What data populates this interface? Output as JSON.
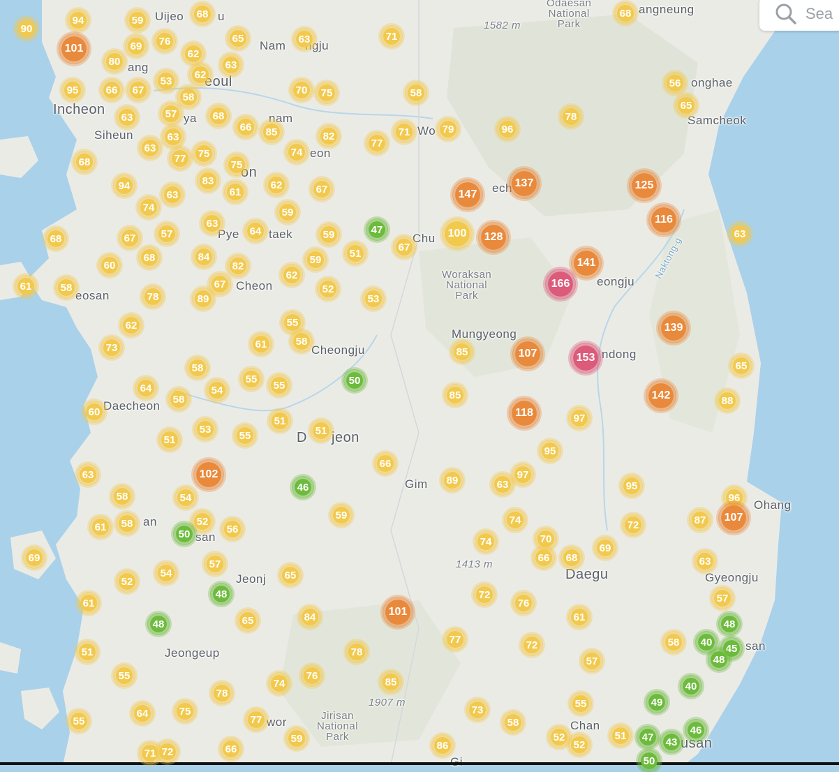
{
  "search": {
    "placeholder": "Sea"
  },
  "colors": {
    "sea": "#a9d1ea",
    "land": "#ebebe6",
    "good": "#6cbb3c",
    "moderate": "#f2c94c",
    "usg": "#e9893b",
    "unhealthy": "#dc5a7a"
  },
  "places": [
    {
      "text": "Uijeo",
      "kind": "town"
    },
    {
      "text": "u",
      "kind": "town"
    },
    {
      "text": "Nam",
      "kind": "town"
    },
    {
      "text": "ngju",
      "kind": "town"
    },
    {
      "text": "ang",
      "kind": "town"
    },
    {
      "text": "eoul",
      "kind": "city"
    },
    {
      "text": "Incheon",
      "kind": "city"
    },
    {
      "text": "Siheun",
      "kind": "town"
    },
    {
      "text": "ya",
      "kind": "town"
    },
    {
      "text": "nam",
      "kind": "town"
    },
    {
      "text": "eon",
      "kind": "town"
    },
    {
      "text": "Wo",
      "kind": "town"
    },
    {
      "text": "on",
      "kind": "city"
    },
    {
      "text": "Pye",
      "kind": "town"
    },
    {
      "text": "taek",
      "kind": "town"
    },
    {
      "text": "Chu",
      "kind": "town"
    },
    {
      "text": "Cheon",
      "kind": "town"
    },
    {
      "text": "eosan",
      "kind": "town"
    },
    {
      "text": "Cheongju",
      "kind": "town"
    },
    {
      "text": "Daecheon",
      "kind": "town"
    },
    {
      "text": "D",
      "kind": "city"
    },
    {
      "text": "jeon",
      "kind": "city"
    },
    {
      "text": "Gim",
      "kind": "town"
    },
    {
      "text": "an",
      "kind": "town"
    },
    {
      "text": "san",
      "kind": "town"
    },
    {
      "text": "Jeonj",
      "kind": "town"
    },
    {
      "text": "Jeongeup",
      "kind": "town"
    },
    {
      "text": "wor",
      "kind": "town"
    },
    {
      "text": "angneung",
      "kind": "town"
    },
    {
      "text": "onghae",
      "kind": "town"
    },
    {
      "text": "Samcheok",
      "kind": "town"
    },
    {
      "text": "ech",
      "kind": "town"
    },
    {
      "text": "eongju",
      "kind": "town"
    },
    {
      "text": "Mungyeong",
      "kind": "town"
    },
    {
      "text": "ndong",
      "kind": "town"
    },
    {
      "text": "Ohang",
      "kind": "town"
    },
    {
      "text": "Daegu",
      "kind": "city"
    },
    {
      "text": "Gyeongju",
      "kind": "town"
    },
    {
      "text": "san",
      "kind": "town"
    },
    {
      "text": "Chan",
      "kind": "town"
    },
    {
      "text": "usan",
      "kind": "city"
    },
    {
      "text": "Gi",
      "kind": "town"
    }
  ],
  "parks": [
    {
      "text": "Odaesan\nNational\nPark"
    },
    {
      "text": "Woraksan\nNational\nPark"
    },
    {
      "text": "Jirisan\nNational\nPark"
    }
  ],
  "elevations": [
    "1582 m",
    "1413 m",
    "1907 m"
  ],
  "rivers": [
    "Naktong-g"
  ],
  "markers": [
    {
      "v": "90",
      "c": "moderate"
    },
    {
      "v": "94",
      "c": "moderate"
    },
    {
      "v": "59",
      "c": "moderate"
    },
    {
      "v": "68",
      "c": "moderate"
    },
    {
      "v": "101",
      "c": "usg"
    },
    {
      "v": "69",
      "c": "moderate"
    },
    {
      "v": "76",
      "c": "moderate"
    },
    {
      "v": "65",
      "c": "moderate"
    },
    {
      "v": "63",
      "c": "moderate"
    },
    {
      "v": "71",
      "c": "moderate"
    },
    {
      "v": "68",
      "c": "moderate"
    },
    {
      "v": "80",
      "c": "moderate"
    },
    {
      "v": "62",
      "c": "moderate"
    },
    {
      "v": "63",
      "c": "moderate"
    },
    {
      "v": "95",
      "c": "moderate"
    },
    {
      "v": "66",
      "c": "moderate"
    },
    {
      "v": "67",
      "c": "moderate"
    },
    {
      "v": "53",
      "c": "moderate"
    },
    {
      "v": "62",
      "c": "moderate"
    },
    {
      "v": "58",
      "c": "moderate"
    },
    {
      "v": "70",
      "c": "moderate"
    },
    {
      "v": "75",
      "c": "moderate"
    },
    {
      "v": "58",
      "c": "moderate"
    },
    {
      "v": "56",
      "c": "moderate"
    },
    {
      "v": "65",
      "c": "moderate"
    },
    {
      "v": "63",
      "c": "moderate"
    },
    {
      "v": "57",
      "c": "moderate"
    },
    {
      "v": "68",
      "c": "moderate"
    },
    {
      "v": "66",
      "c": "moderate"
    },
    {
      "v": "85",
      "c": "moderate"
    },
    {
      "v": "82",
      "c": "moderate"
    },
    {
      "v": "71",
      "c": "moderate"
    },
    {
      "v": "79",
      "c": "moderate"
    },
    {
      "v": "96",
      "c": "moderate"
    },
    {
      "v": "78",
      "c": "moderate"
    },
    {
      "v": "77",
      "c": "moderate"
    },
    {
      "v": "63",
      "c": "moderate"
    },
    {
      "v": "63",
      "c": "moderate"
    },
    {
      "v": "77",
      "c": "moderate"
    },
    {
      "v": "75",
      "c": "moderate"
    },
    {
      "v": "74",
      "c": "moderate"
    },
    {
      "v": "68",
      "c": "moderate"
    },
    {
      "v": "75",
      "c": "moderate"
    },
    {
      "v": "83",
      "c": "moderate"
    },
    {
      "v": "61",
      "c": "moderate"
    },
    {
      "v": "62",
      "c": "moderate"
    },
    {
      "v": "67",
      "c": "moderate"
    },
    {
      "v": "94",
      "c": "moderate"
    },
    {
      "v": "63",
      "c": "moderate"
    },
    {
      "v": "74",
      "c": "moderate"
    },
    {
      "v": "59",
      "c": "moderate"
    },
    {
      "v": "147",
      "c": "usg"
    },
    {
      "v": "137",
      "c": "usg"
    },
    {
      "v": "125",
      "c": "usg"
    },
    {
      "v": "116",
      "c": "usg"
    },
    {
      "v": "63",
      "c": "moderate"
    },
    {
      "v": "63",
      "c": "moderate"
    },
    {
      "v": "64",
      "c": "moderate"
    },
    {
      "v": "59",
      "c": "moderate"
    },
    {
      "v": "47",
      "c": "good"
    },
    {
      "v": "100",
      "c": "moderate"
    },
    {
      "v": "128",
      "c": "usg"
    },
    {
      "v": "67",
      "c": "moderate"
    },
    {
      "v": "68",
      "c": "moderate"
    },
    {
      "v": "57",
      "c": "moderate"
    },
    {
      "v": "51",
      "c": "moderate"
    },
    {
      "v": "67",
      "c": "moderate"
    },
    {
      "v": "60",
      "c": "moderate"
    },
    {
      "v": "68",
      "c": "moderate"
    },
    {
      "v": "84",
      "c": "moderate"
    },
    {
      "v": "82",
      "c": "moderate"
    },
    {
      "v": "59",
      "c": "moderate"
    },
    {
      "v": "62",
      "c": "moderate"
    },
    {
      "v": "141",
      "c": "usg"
    },
    {
      "v": "166",
      "c": "unhealthy"
    },
    {
      "v": "61",
      "c": "moderate"
    },
    {
      "v": "58",
      "c": "moderate"
    },
    {
      "v": "78",
      "c": "moderate"
    },
    {
      "v": "67",
      "c": "moderate"
    },
    {
      "v": "89",
      "c": "moderate"
    },
    {
      "v": "52",
      "c": "moderate"
    },
    {
      "v": "53",
      "c": "moderate"
    },
    {
      "v": "62",
      "c": "moderate"
    },
    {
      "v": "55",
      "c": "moderate"
    },
    {
      "v": "139",
      "c": "usg"
    },
    {
      "v": "73",
      "c": "moderate"
    },
    {
      "v": "61",
      "c": "moderate"
    },
    {
      "v": "58",
      "c": "moderate"
    },
    {
      "v": "85",
      "c": "moderate"
    },
    {
      "v": "107",
      "c": "usg"
    },
    {
      "v": "153",
      "c": "unhealthy"
    },
    {
      "v": "65",
      "c": "moderate"
    },
    {
      "v": "58",
      "c": "moderate"
    },
    {
      "v": "50",
      "c": "good"
    },
    {
      "v": "64",
      "c": "moderate"
    },
    {
      "v": "55",
      "c": "moderate"
    },
    {
      "v": "55",
      "c": "moderate"
    },
    {
      "v": "54",
      "c": "moderate"
    },
    {
      "v": "58",
      "c": "moderate"
    },
    {
      "v": "60",
      "c": "moderate"
    },
    {
      "v": "85",
      "c": "moderate"
    },
    {
      "v": "142",
      "c": "usg"
    },
    {
      "v": "88",
      "c": "moderate"
    },
    {
      "v": "118",
      "c": "usg"
    },
    {
      "v": "97",
      "c": "moderate"
    },
    {
      "v": "51",
      "c": "moderate"
    },
    {
      "v": "53",
      "c": "moderate"
    },
    {
      "v": "55",
      "c": "moderate"
    },
    {
      "v": "51",
      "c": "moderate"
    },
    {
      "v": "51",
      "c": "moderate"
    },
    {
      "v": "95",
      "c": "moderate"
    },
    {
      "v": "66",
      "c": "moderate"
    },
    {
      "v": "63",
      "c": "moderate"
    },
    {
      "v": "46",
      "c": "good"
    },
    {
      "v": "102",
      "c": "usg"
    },
    {
      "v": "89",
      "c": "moderate"
    },
    {
      "v": "97",
      "c": "moderate"
    },
    {
      "v": "63",
      "c": "moderate"
    },
    {
      "v": "95",
      "c": "moderate"
    },
    {
      "v": "58",
      "c": "moderate"
    },
    {
      "v": "54",
      "c": "moderate"
    },
    {
      "v": "96",
      "c": "moderate"
    },
    {
      "v": "107",
      "c": "usg"
    },
    {
      "v": "59",
      "c": "moderate"
    },
    {
      "v": "74",
      "c": "moderate"
    },
    {
      "v": "52",
      "c": "moderate"
    },
    {
      "v": "72",
      "c": "moderate"
    },
    {
      "v": "87",
      "c": "moderate"
    },
    {
      "v": "61",
      "c": "moderate"
    },
    {
      "v": "58",
      "c": "moderate"
    },
    {
      "v": "50",
      "c": "good"
    },
    {
      "v": "56",
      "c": "moderate"
    },
    {
      "v": "74",
      "c": "moderate"
    },
    {
      "v": "70",
      "c": "moderate"
    },
    {
      "v": "69",
      "c": "moderate"
    },
    {
      "v": "66",
      "c": "moderate"
    },
    {
      "v": "68",
      "c": "moderate"
    },
    {
      "v": "69",
      "c": "moderate"
    },
    {
      "v": "57",
      "c": "moderate"
    },
    {
      "v": "63",
      "c": "moderate"
    },
    {
      "v": "52",
      "c": "moderate"
    },
    {
      "v": "54",
      "c": "moderate"
    },
    {
      "v": "65",
      "c": "moderate"
    },
    {
      "v": "48",
      "c": "good"
    },
    {
      "v": "72",
      "c": "moderate"
    },
    {
      "v": "76",
      "c": "moderate"
    },
    {
      "v": "57",
      "c": "moderate"
    },
    {
      "v": "61",
      "c": "moderate"
    },
    {
      "v": "101",
      "c": "usg"
    },
    {
      "v": "61",
      "c": "moderate"
    },
    {
      "v": "48",
      "c": "good"
    },
    {
      "v": "65",
      "c": "moderate"
    },
    {
      "v": "84",
      "c": "moderate"
    },
    {
      "v": "48",
      "c": "good"
    },
    {
      "v": "77",
      "c": "moderate"
    },
    {
      "v": "72",
      "c": "moderate"
    },
    {
      "v": "58",
      "c": "moderate"
    },
    {
      "v": "40",
      "c": "good"
    },
    {
      "v": "45",
      "c": "good"
    },
    {
      "v": "48",
      "c": "good"
    },
    {
      "v": "51",
      "c": "moderate"
    },
    {
      "v": "78",
      "c": "moderate"
    },
    {
      "v": "57",
      "c": "moderate"
    },
    {
      "v": "55",
      "c": "moderate"
    },
    {
      "v": "76",
      "c": "moderate"
    },
    {
      "v": "74",
      "c": "moderate"
    },
    {
      "v": "85",
      "c": "moderate"
    },
    {
      "v": "40",
      "c": "good"
    },
    {
      "v": "78",
      "c": "moderate"
    },
    {
      "v": "64",
      "c": "moderate"
    },
    {
      "v": "75",
      "c": "moderate"
    },
    {
      "v": "49",
      "c": "good"
    },
    {
      "v": "55",
      "c": "moderate"
    },
    {
      "v": "55",
      "c": "moderate"
    },
    {
      "v": "77",
      "c": "moderate"
    },
    {
      "v": "73",
      "c": "moderate"
    },
    {
      "v": "58",
      "c": "moderate"
    },
    {
      "v": "46",
      "c": "good"
    },
    {
      "v": "47",
      "c": "good"
    },
    {
      "v": "43",
      "c": "good"
    },
    {
      "v": "52",
      "c": "moderate"
    },
    {
      "v": "51",
      "c": "moderate"
    },
    {
      "v": "59",
      "c": "moderate"
    },
    {
      "v": "86",
      "c": "moderate"
    },
    {
      "v": "52",
      "c": "moderate"
    },
    {
      "v": "66",
      "c": "moderate"
    },
    {
      "v": "71",
      "c": "moderate"
    },
    {
      "v": "72",
      "c": "moderate"
    },
    {
      "v": "50",
      "c": "good"
    }
  ]
}
